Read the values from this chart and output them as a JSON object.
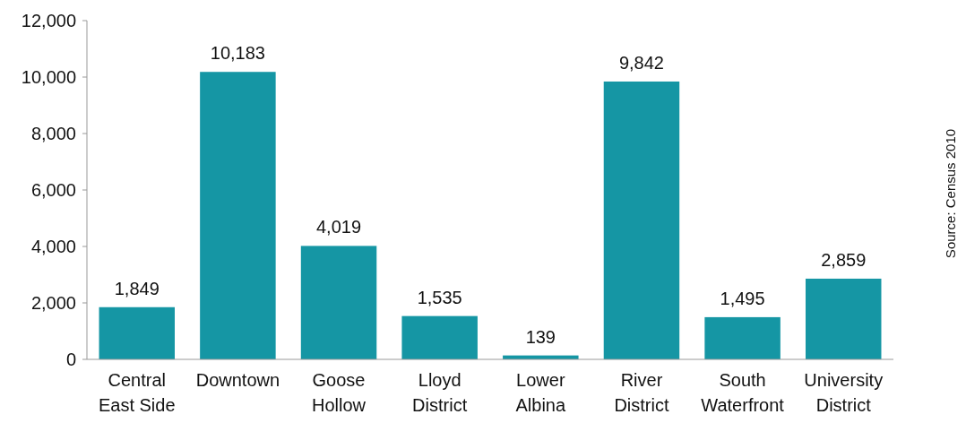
{
  "chart_data": {
    "type": "bar",
    "categories": [
      "Central East Side",
      "Downtown",
      "Goose Hollow",
      "Lloyd District",
      "Lower Albina",
      "River District",
      "South Waterfront",
      "University District"
    ],
    "values": [
      1849,
      10183,
      4019,
      1535,
      139,
      9842,
      1495,
      2859
    ],
    "color": "#1596a4",
    "ylim": [
      0,
      12000
    ],
    "yticks": [
      {
        "value": 0,
        "label": "0"
      },
      {
        "value": 2000,
        "label": "2,000"
      },
      {
        "value": 4000,
        "label": "4,000"
      },
      {
        "value": 6000,
        "label": "6,000"
      },
      {
        "value": 8000,
        "label": "8,000"
      },
      {
        "value": 10000,
        "label": "10,000"
      },
      {
        "value": 12000,
        "label": "12,000"
      }
    ],
    "value_labels": [
      "1,849",
      "10,183",
      "4,019",
      "1,535",
      "139",
      "9,842",
      "1,495",
      "2,859"
    ],
    "grid": false,
    "annotations": [
      "Source: Census 2010"
    ]
  }
}
